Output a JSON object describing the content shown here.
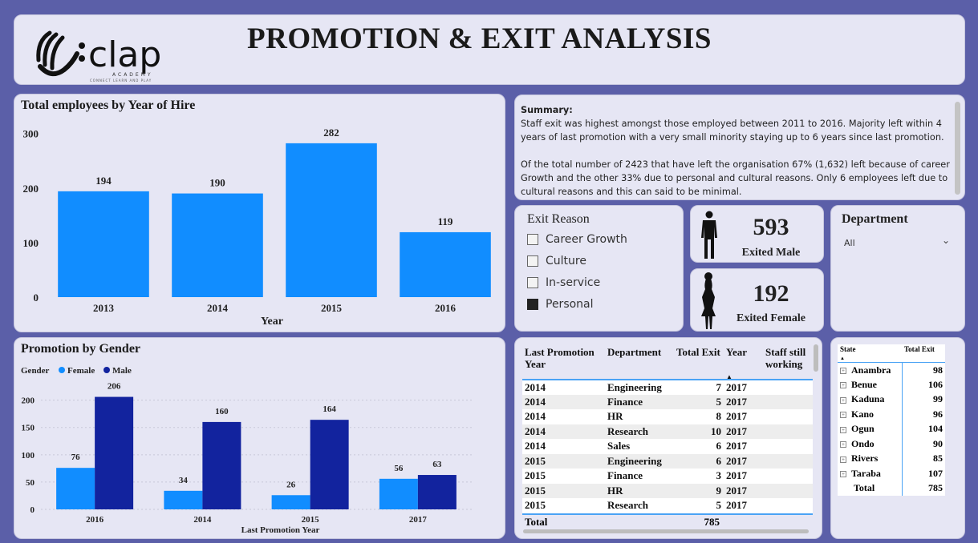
{
  "header": {
    "title": "PROMOTION & EXIT ANALYSIS",
    "logo_text": "clap",
    "logo_sub": "ACADEMY",
    "logo_tagline": "CONNECT LEARN AND PLAY"
  },
  "summary": {
    "heading": "Summary:",
    "para1": "Staff exit was highest amongst those employed between 2011 to 2016. Majority left within 4 years of last promotion with a very small minority staying up to 6 years since last promotion.",
    "para2": "Of the total number of 2423 that have left the organisation 67% (1,632) left because of career Growth and the other 33% due to personal and cultural reasons. Only 6 employees left due to cultural reasons and this can said to be minimal."
  },
  "exit_reason": {
    "title": "Exit Reason",
    "options": [
      {
        "label": "Career Growth",
        "checked": false
      },
      {
        "label": "Culture",
        "checked": false
      },
      {
        "label": "In-service",
        "checked": false
      },
      {
        "label": "Personal",
        "checked": true
      }
    ]
  },
  "kpi": {
    "male_value": "593",
    "male_label": "Exited Male",
    "female_value": "192",
    "female_label": "Exited Female"
  },
  "department": {
    "title": "Department",
    "selected": "All"
  },
  "promo_table": {
    "headers": [
      "Last Promotion Year",
      "Department",
      "Total Exit",
      "Year",
      "Staff still working"
    ],
    "rows": [
      [
        "2014",
        "Engineering",
        "7",
        "2017",
        ""
      ],
      [
        "2014",
        "Finance",
        "5",
        "2017",
        ""
      ],
      [
        "2014",
        "HR",
        "8",
        "2017",
        ""
      ],
      [
        "2014",
        "Research",
        "10",
        "2017",
        ""
      ],
      [
        "2014",
        "Sales",
        "6",
        "2017",
        ""
      ],
      [
        "2015",
        "Engineering",
        "6",
        "2017",
        ""
      ],
      [
        "2015",
        "Finance",
        "3",
        "2017",
        ""
      ],
      [
        "2015",
        "HR",
        "9",
        "2017",
        ""
      ],
      [
        "2015",
        "Research",
        "5",
        "2017",
        ""
      ]
    ],
    "total_label": "Total",
    "total_value": "785"
  },
  "state_table": {
    "headers": [
      "State",
      "Total Exit"
    ],
    "rows": [
      [
        "Anambra",
        "98"
      ],
      [
        "Benue",
        "106"
      ],
      [
        "Kaduna",
        "99"
      ],
      [
        "Kano",
        "96"
      ],
      [
        "Ogun",
        "104"
      ],
      [
        "Ondo",
        "90"
      ],
      [
        "Rivers",
        "85"
      ],
      [
        "Taraba",
        "107"
      ]
    ],
    "total_label": "Total",
    "total_value": "785"
  },
  "colors": {
    "bar_blue": "#118dff",
    "female": "#118dff",
    "male": "#12239e",
    "panel": "#e6e6f4",
    "background": "#5b5fa8"
  },
  "chart_data": [
    {
      "type": "bar",
      "title": "Total employees by Year of Hire",
      "xlabel": "Year",
      "ylabel": "",
      "categories": [
        "2013",
        "2014",
        "2015",
        "2016"
      ],
      "values": [
        194,
        190,
        282,
        119
      ],
      "yticks": [
        0,
        100,
        200,
        300
      ],
      "ylim": [
        0,
        320
      ],
      "data_labels": true,
      "grid": false
    },
    {
      "type": "bar",
      "title": "Promotion by Gender",
      "xlabel": "Last Promotion Year",
      "ylabel": "",
      "legend_title": "Gender",
      "legend_position": "top-left",
      "categories": [
        "2016",
        "2014",
        "2015",
        "2017"
      ],
      "series": [
        {
          "name": "Female",
          "values": [
            76,
            34,
            26,
            56
          ]
        },
        {
          "name": "Male",
          "values": [
            206,
            160,
            164,
            63
          ]
        }
      ],
      "yticks": [
        0,
        50,
        100,
        150,
        200
      ],
      "ylim": [
        0,
        220
      ],
      "data_labels": true,
      "grid": true
    }
  ]
}
